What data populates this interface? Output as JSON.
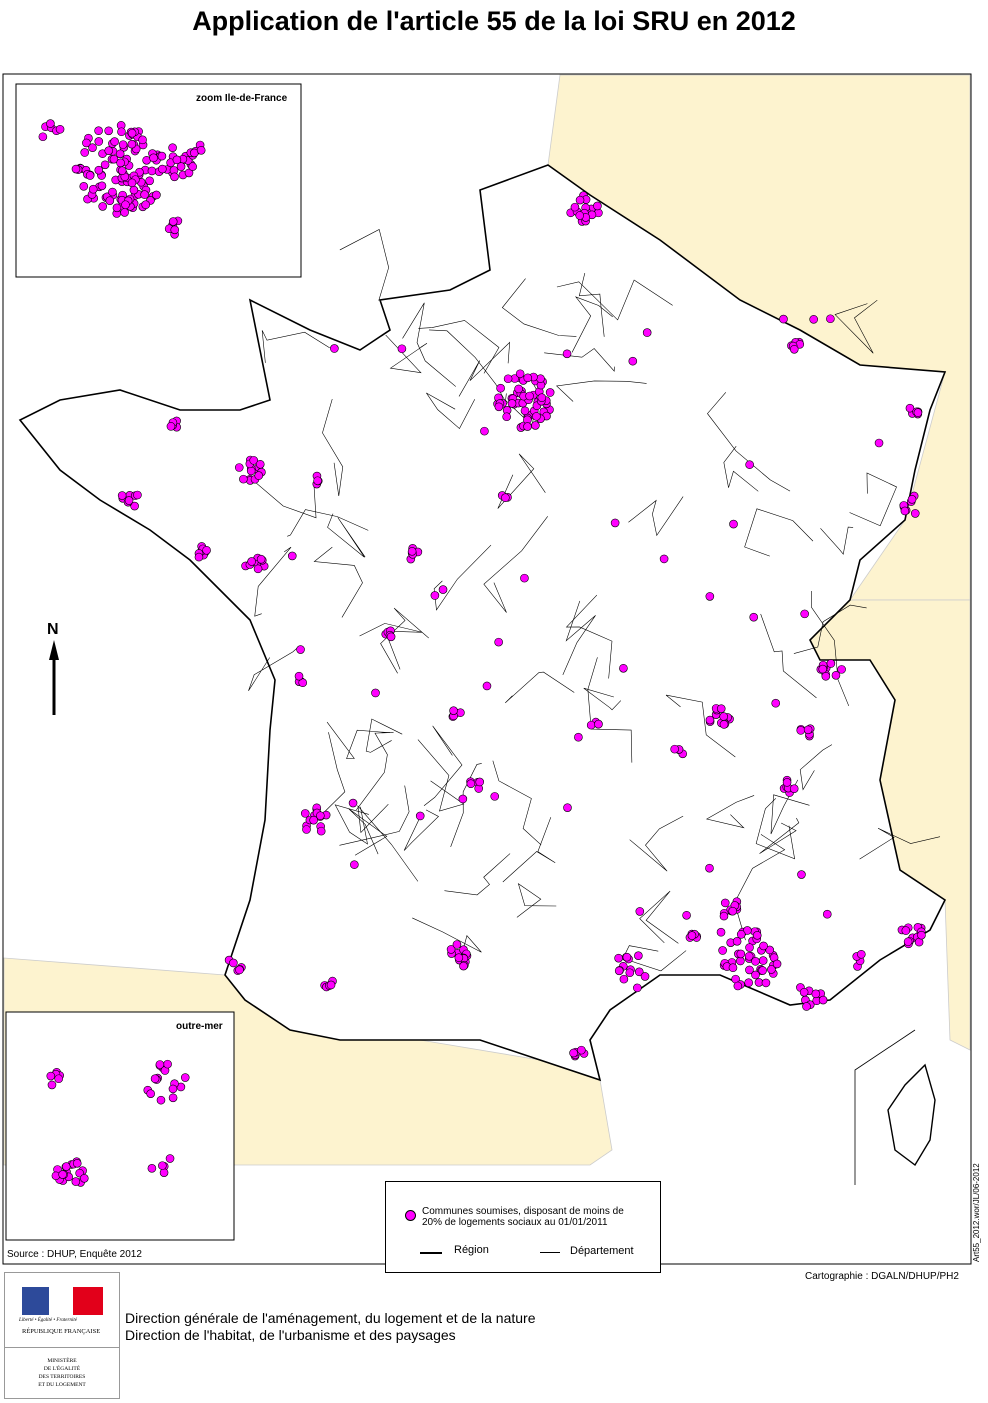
{
  "title": "Application de l'article 55 de la loi SRU en 2012",
  "insets": {
    "idf_title": "zoom Ile-de-France",
    "overseas_title": "outre-mer"
  },
  "north_label": "N",
  "source": "Source : DHUP, Enquête 2012",
  "cartography": "Cartographie : DGALN/DHUP/PH2",
  "file_ref": "Art55_2012.wor/JL/06-2012",
  "legend": {
    "point_label_line1": "Communes soumises, disposant de moins de",
    "point_label_line2": "20% de logements sociaux au 01/01/2011",
    "region_label": "Région",
    "department_label": "Département"
  },
  "colors": {
    "point": "#ff00ff",
    "neighbor_land": "#fdf3cf",
    "sea": "#ffffff"
  },
  "logo": {
    "motto": "Liberté • Égalité • Fraternité",
    "republic": "RÉPUBLIQUE FRANÇAISE",
    "ministry_lines": [
      "MINISTÈRE",
      "DE L'ÉGALITÉ",
      "DES TERRITOIRES",
      "ET DU LOGEMENT"
    ]
  },
  "footer": {
    "line1": "Direction générale de l'aménagement, du logement et de la nature",
    "line2": "Direction de l'habitat, de l'urbanisme et des paysages"
  }
}
